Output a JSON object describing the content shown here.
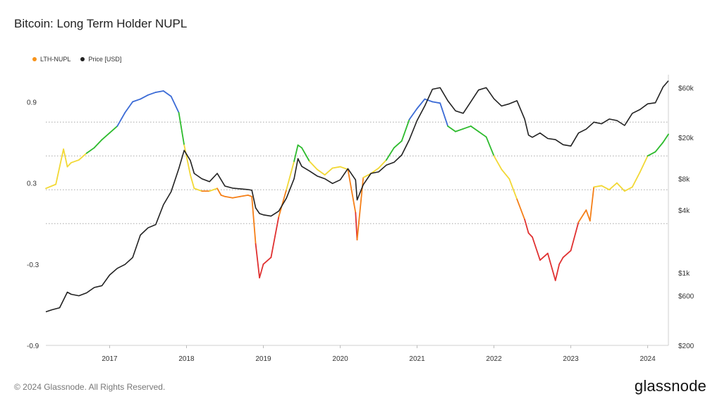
{
  "page": {
    "title": "Bitcoin: Long Term Holder NUPL",
    "footer": "© 2024 Glassnode. All Rights Reserved.",
    "logo": "glassnode"
  },
  "chart_data": {
    "type": "line",
    "title": "Bitcoin: Long Term Holder NUPL",
    "legend": [
      {
        "name": "LTH-NUPL",
        "color": "#f7931a"
      },
      {
        "name": "Price [USD]",
        "color": "#222222"
      }
    ],
    "x_range": [
      2016.17,
      2024.27
    ],
    "x_ticks": [
      2017,
      2018,
      2019,
      2020,
      2021,
      2022,
      2023,
      2024
    ],
    "x_tick_labels": [
      "2017",
      "2018",
      "2019",
      "2020",
      "2021",
      "2022",
      "2023",
      "2024"
    ],
    "y_left": {
      "range": [
        -0.9,
        1.1
      ],
      "ticks": [
        -0.9,
        -0.3,
        0.3,
        0.9
      ],
      "tick_labels": [
        "-0.9",
        "-0.3",
        "0.3",
        "0.9"
      ]
    },
    "y_right": {
      "scale": "log",
      "range": [
        200,
        80000
      ],
      "ticks": [
        200,
        600,
        1000,
        4000,
        8000,
        20000,
        60000
      ],
      "tick_labels": [
        "$200",
        "$600",
        "$1k",
        "$4k",
        "$8k",
        "$20k",
        "$60k"
      ]
    },
    "zone_lines": [
      0.0,
      0.25,
      0.5,
      0.75
    ],
    "zone_colors": {
      "capitulation": "#e03131",
      "hope_fear": "#f57f17",
      "optimism": "#f2d835",
      "belief": "#2dbb2d",
      "euphoria": "#3b6bd6"
    },
    "series": [
      {
        "name": "LTH-NUPL",
        "color": "#f7931a",
        "x": [
          2016.17,
          2016.3,
          2016.4,
          2016.45,
          2016.5,
          2016.6,
          2016.7,
          2016.8,
          2016.9,
          2017.0,
          2017.1,
          2017.2,
          2017.3,
          2017.4,
          2017.5,
          2017.6,
          2017.7,
          2017.8,
          2017.9,
          2017.97,
          2018.05,
          2018.1,
          2018.2,
          2018.3,
          2018.4,
          2018.45,
          2018.5,
          2018.6,
          2018.7,
          2018.8,
          2018.85,
          2018.9,
          2018.95,
          2019.0,
          2019.1,
          2019.2,
          2019.3,
          2019.4,
          2019.45,
          2019.5,
          2019.6,
          2019.7,
          2019.8,
          2019.9,
          2020.0,
          2020.1,
          2020.2,
          2020.22,
          2020.3,
          2020.4,
          2020.5,
          2020.6,
          2020.7,
          2020.8,
          2020.9,
          2021.0,
          2021.1,
          2021.2,
          2021.3,
          2021.4,
          2021.5,
          2021.6,
          2021.7,
          2021.8,
          2021.9,
          2022.0,
          2022.1,
          2022.2,
          2022.3,
          2022.4,
          2022.45,
          2022.5,
          2022.6,
          2022.7,
          2022.8,
          2022.85,
          2022.9,
          2023.0,
          2023.1,
          2023.2,
          2023.25,
          2023.3,
          2023.4,
          2023.5,
          2023.6,
          2023.7,
          2023.8,
          2023.9,
          2024.0,
          2024.1,
          2024.2,
          2024.27
        ],
        "values": [
          0.26,
          0.29,
          0.55,
          0.42,
          0.45,
          0.47,
          0.52,
          0.56,
          0.62,
          0.67,
          0.72,
          0.82,
          0.9,
          0.92,
          0.95,
          0.97,
          0.98,
          0.94,
          0.82,
          0.58,
          0.36,
          0.26,
          0.24,
          0.24,
          0.26,
          0.21,
          0.2,
          0.19,
          0.2,
          0.21,
          0.2,
          -0.15,
          -0.4,
          -0.3,
          -0.25,
          0.05,
          0.25,
          0.46,
          0.58,
          0.56,
          0.46,
          0.4,
          0.36,
          0.41,
          0.42,
          0.4,
          0.08,
          -0.12,
          0.34,
          0.37,
          0.41,
          0.47,
          0.56,
          0.61,
          0.77,
          0.85,
          0.92,
          0.9,
          0.89,
          0.72,
          0.68,
          0.7,
          0.72,
          0.68,
          0.64,
          0.5,
          0.4,
          0.33,
          0.18,
          0.03,
          -0.07,
          -0.1,
          -0.27,
          -0.22,
          -0.42,
          -0.3,
          -0.25,
          -0.2,
          0.01,
          0.1,
          0.02,
          0.27,
          0.28,
          0.25,
          0.3,
          0.24,
          0.27,
          0.38,
          0.5,
          0.53,
          0.6,
          0.66
        ]
      },
      {
        "name": "Price [USD]",
        "color": "#222222",
        "x": [
          2016.17,
          2016.25,
          2016.35,
          2016.45,
          2016.5,
          2016.6,
          2016.7,
          2016.8,
          2016.9,
          2017.0,
          2017.1,
          2017.2,
          2017.3,
          2017.4,
          2017.5,
          2017.6,
          2017.7,
          2017.8,
          2017.9,
          2017.97,
          2018.05,
          2018.1,
          2018.2,
          2018.3,
          2018.4,
          2018.5,
          2018.6,
          2018.7,
          2018.8,
          2018.85,
          2018.9,
          2018.95,
          2019.0,
          2019.1,
          2019.2,
          2019.3,
          2019.4,
          2019.45,
          2019.5,
          2019.6,
          2019.7,
          2019.8,
          2019.9,
          2020.0,
          2020.1,
          2020.2,
          2020.22,
          2020.3,
          2020.4,
          2020.5,
          2020.6,
          2020.7,
          2020.8,
          2020.9,
          2021.0,
          2021.1,
          2021.2,
          2021.3,
          2021.4,
          2021.5,
          2021.6,
          2021.7,
          2021.8,
          2021.9,
          2022.0,
          2022.1,
          2022.2,
          2022.3,
          2022.4,
          2022.45,
          2022.5,
          2022.6,
          2022.7,
          2022.8,
          2022.9,
          2023.0,
          2023.1,
          2023.2,
          2023.3,
          2023.4,
          2023.5,
          2023.6,
          2023.7,
          2023.8,
          2023.9,
          2024.0,
          2024.1,
          2024.2,
          2024.27
        ],
        "values": [
          420,
          440,
          460,
          650,
          620,
          600,
          640,
          720,
          750,
          950,
          1100,
          1200,
          1400,
          2300,
          2700,
          2900,
          4500,
          6000,
          10000,
          15000,
          12000,
          9000,
          8000,
          7500,
          9000,
          6800,
          6500,
          6400,
          6300,
          6200,
          4200,
          3700,
          3600,
          3500,
          3900,
          5200,
          8000,
          12500,
          10500,
          9500,
          8500,
          8000,
          7200,
          7800,
          10000,
          7800,
          5000,
          7000,
          9000,
          9300,
          10800,
          11500,
          13500,
          19000,
          29000,
          40000,
          58000,
          60000,
          45000,
          36000,
          34000,
          44000,
          57000,
          60000,
          47000,
          40000,
          42000,
          45000,
          30000,
          21000,
          20000,
          22000,
          19500,
          19000,
          17000,
          16500,
          22000,
          24000,
          28000,
          27000,
          30000,
          29000,
          26000,
          34000,
          37000,
          42000,
          43000,
          61000,
          70000
        ]
      }
    ]
  }
}
